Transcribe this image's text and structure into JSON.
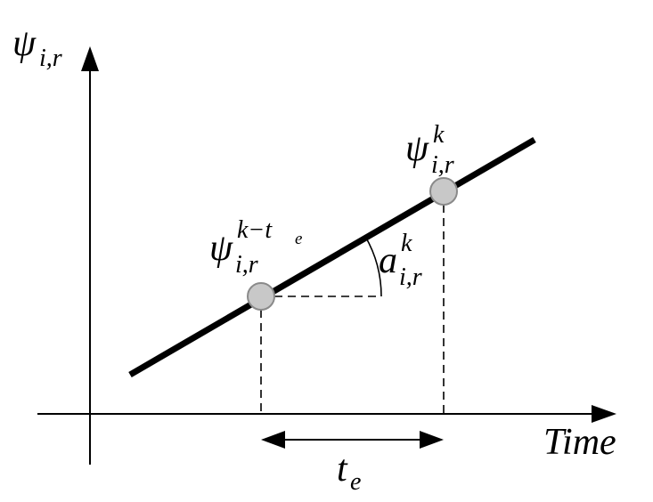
{
  "y_axis_label": {
    "base": "ψ",
    "sub": "i,r"
  },
  "x_axis_label": "Time",
  "point_k_label": {
    "base": "ψ",
    "sup": "k",
    "sub": "i,r"
  },
  "point_k_minus_te_label": {
    "base": "ψ",
    "sup": "k−t",
    "sup_sub": "e",
    "sub": "i,r"
  },
  "slope_label": {
    "base": "a",
    "sup": "k",
    "sub": "i,r"
  },
  "interval_label": {
    "base": "t",
    "sub": "e"
  }
}
